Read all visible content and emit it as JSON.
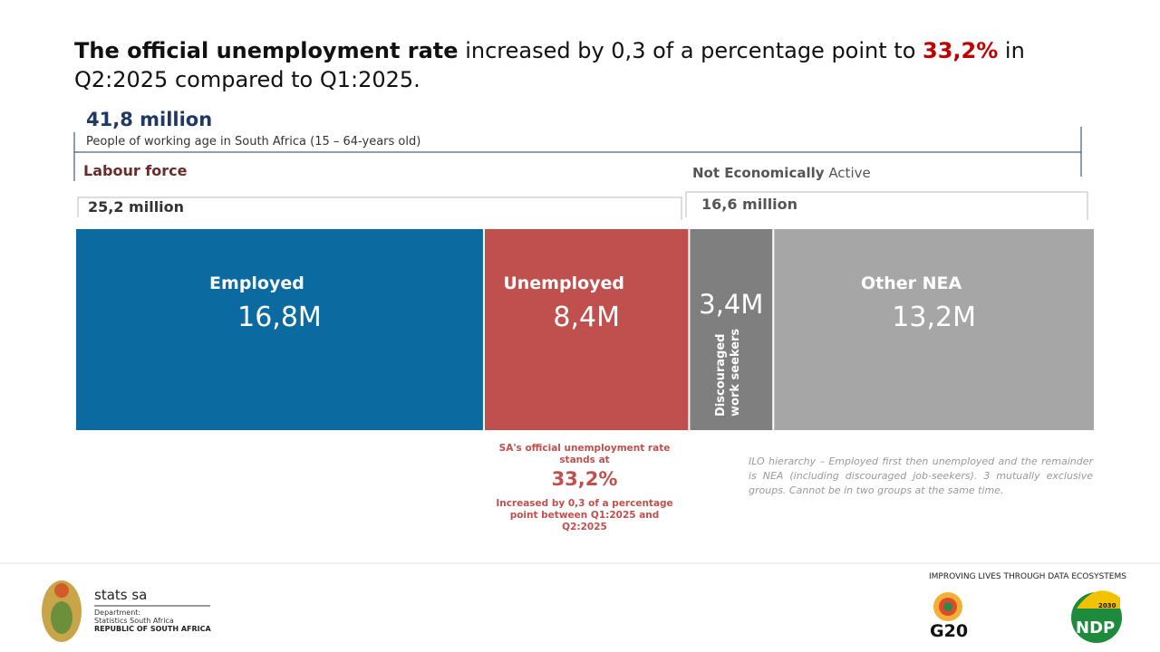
{
  "title": {
    "bold": "The official unemployment rate",
    "middle": "increased by 0,3 of a percentage point to",
    "highlight": "33,2%",
    "end": "in Q2:2025 compared to Q1:2025."
  },
  "working_age": {
    "value_label": "41,8 million",
    "description": "People of working age in South Africa (15 – 64-years old)"
  },
  "labour_force": {
    "label": "Labour force",
    "value_label": "25,2 million"
  },
  "not_active": {
    "label_bold": "Not Economically",
    "label_rest": "Active",
    "value_label": "16,6 million"
  },
  "segments": [
    {
      "label": "Employed",
      "value": 16.8,
      "value_label": "16,8M",
      "color": "#0b6aa0"
    },
    {
      "label": "Unemployed",
      "value": 8.4,
      "value_label": "8,4M",
      "color": "#c0504d"
    },
    {
      "label": "Discouraged work seekers",
      "value": 3.4,
      "value_label": "3,4M",
      "color": "#7f7f7f"
    },
    {
      "label": "Other NEA",
      "value": 13.2,
      "value_label": "13,2M",
      "color": "#a6a6a6"
    }
  ],
  "rate_note": {
    "intro": "SA's official unemployment rate stands at",
    "rate": "33,2%",
    "change": "Increased by 0,3 of a percentage point between Q1:2025 and Q2:2025"
  },
  "ilo_note": "ILO hierarchy – Employed first then unemployed and the remainder is NEA (including discouraged job-seekers). 3 mutually exclusive groups. Cannot be in two groups at the same time.",
  "footer": {
    "org": "stats sa",
    "dept_label": "Department:",
    "dept": "Statistics South Africa",
    "country": "REPUBLIC OF SOUTH AFRICA",
    "slogan": "IMPROVING LIVES THROUGH DATA ECOSYSTEMS",
    "g20": "G20",
    "ndp": "NDP",
    "ndp_year": "2030"
  }
}
